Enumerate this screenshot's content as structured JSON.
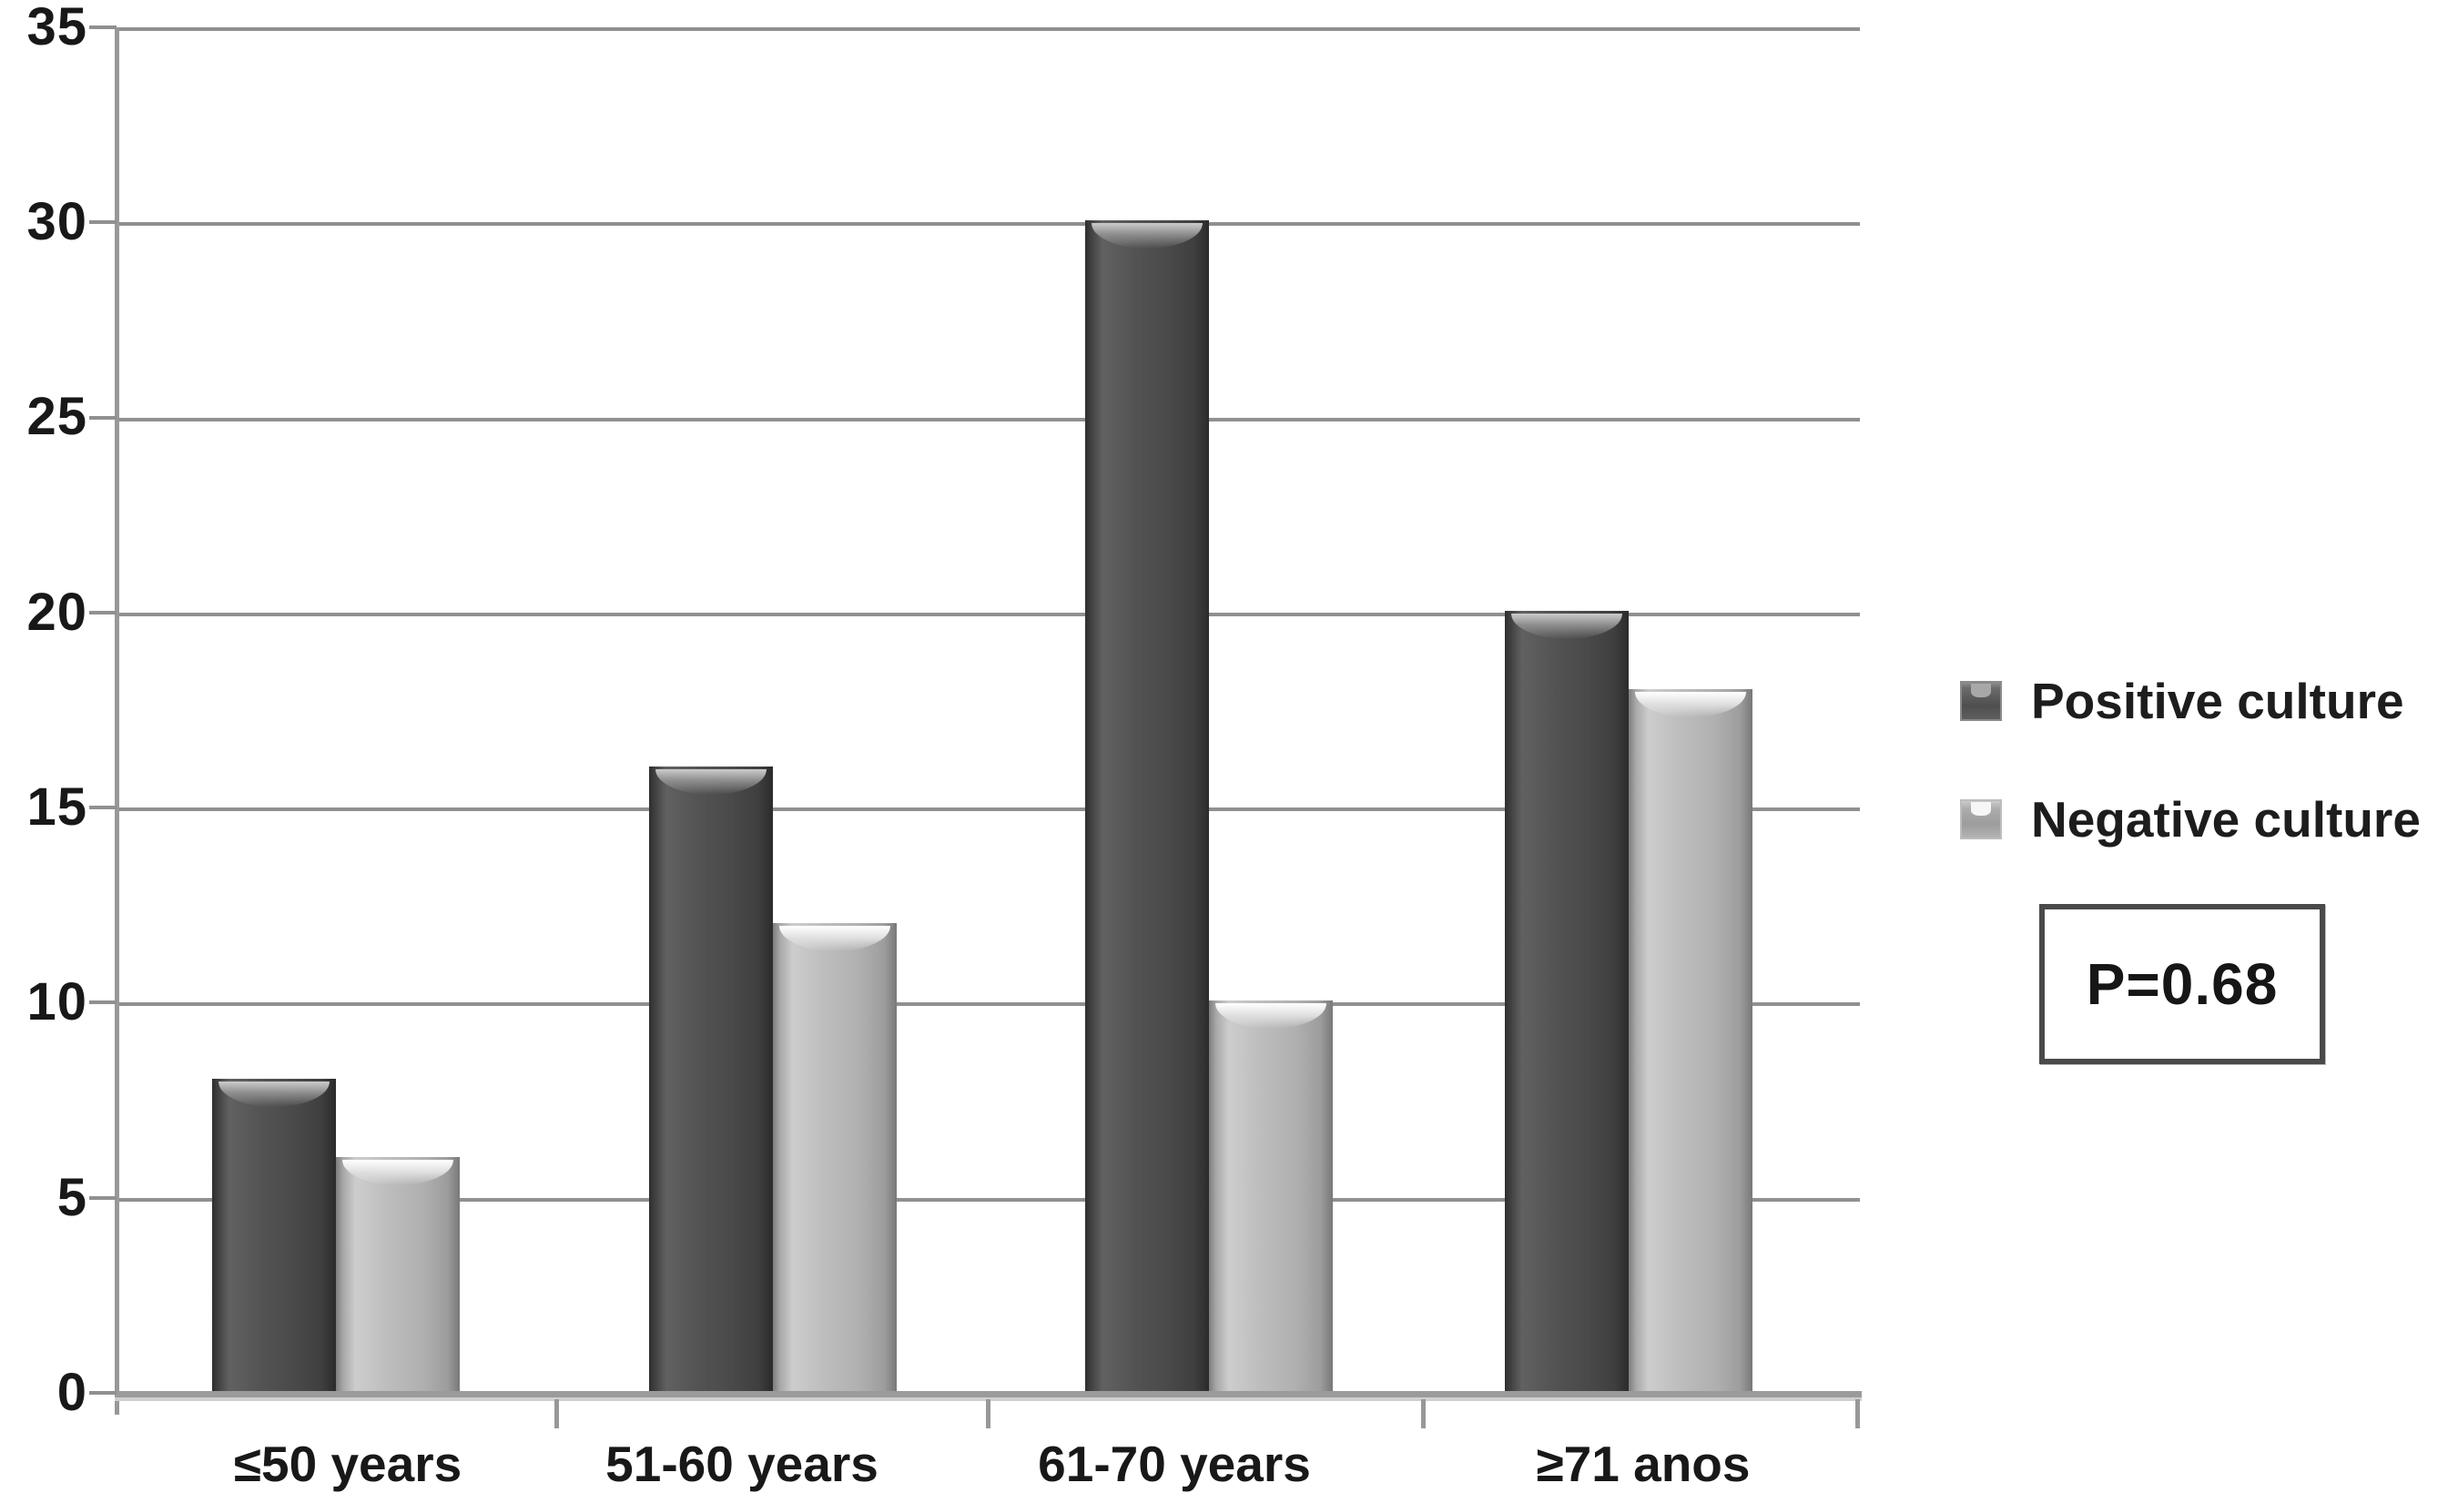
{
  "chart_data": {
    "type": "bar",
    "categories": [
      "≤50 years",
      "51-60 years",
      "61-70 years",
      "≥71 anos"
    ],
    "series": [
      {
        "name": "Positive culture",
        "values": [
          8,
          16,
          30,
          20
        ],
        "color": "#4a4a4a"
      },
      {
        "name": "Negative culture",
        "values": [
          6,
          12,
          10,
          18
        ],
        "color": "#b3b3b3"
      }
    ],
    "title": "",
    "xlabel": "",
    "ylabel": "",
    "ylim": [
      0,
      35
    ],
    "ytick_step": 5,
    "yticks": [
      "35",
      "30",
      "25",
      "20",
      "15",
      "10",
      "5",
      "0"
    ],
    "grid": true,
    "legend_position": "right",
    "annotation": "P=0.68"
  }
}
